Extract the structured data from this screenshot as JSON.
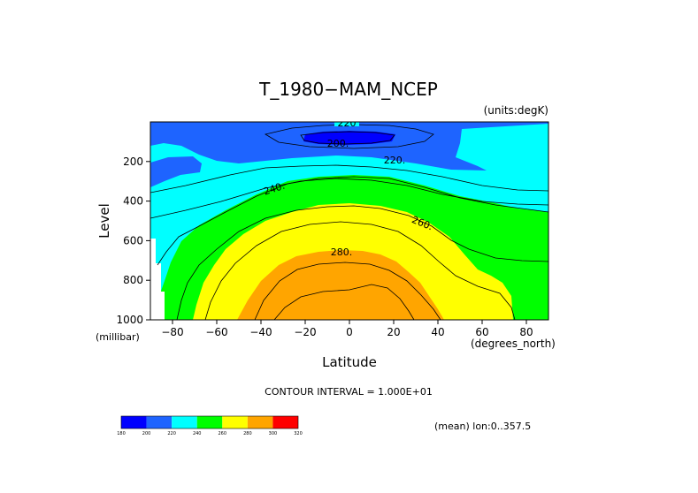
{
  "chart_data": {
    "type": "contour",
    "title": "T_1980−MAM_NCEP",
    "units_label": "(units:degK)",
    "xlabel": "Latitude",
    "ylabel": "Level",
    "x_unit_label": "(degrees_north)",
    "y_unit_label": "(millibar)",
    "xlim": [
      -90,
      90
    ],
    "ylim": [
      1000,
      0
    ],
    "x_ticks": [
      "-80",
      "-60",
      "-40",
      "-20",
      "0",
      "20",
      "40",
      "60",
      "80"
    ],
    "y_ticks": [
      "200",
      "400",
      "600",
      "800",
      "1000"
    ],
    "contour_interval_text": "CONTOUR INTERVAL = 1.000E+01",
    "mean_text": "(mean) lon:0..357.5",
    "contour_labels": [
      "220",
      "200.",
      "220.",
      "240.",
      "260.",
      "280."
    ],
    "colorbar": {
      "levels": [
        "180",
        "200",
        "220",
        "240",
        "260",
        "280",
        "300",
        "320"
      ],
      "colors": [
        "#0000ff",
        "#1e64ff",
        "#00ffff",
        "#00ff00",
        "#ffff00",
        "#ffa500",
        "#ff0000"
      ]
    },
    "bands_colors": {
      "c200": "#1e64ff",
      "c180": "#0000ff",
      "c220": "#00ffff",
      "c240": "#00ff00",
      "c260": "#ffff00",
      "c280": "#ffa500"
    }
  }
}
